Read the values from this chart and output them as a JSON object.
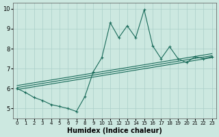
{
  "title": "",
  "xlabel": "Humidex (Indice chaleur)",
  "ylabel": "",
  "xlim": [
    -0.5,
    23.5
  ],
  "ylim": [
    4.5,
    10.3
  ],
  "xticks": [
    0,
    1,
    2,
    3,
    4,
    5,
    6,
    7,
    8,
    9,
    10,
    11,
    12,
    13,
    14,
    15,
    16,
    17,
    18,
    19,
    20,
    21,
    22,
    23
  ],
  "yticks": [
    5,
    6,
    7,
    8,
    9,
    10
  ],
  "bg_color": "#cce8e0",
  "line_color": "#1a6b5a",
  "grid_color": "#aacfc8",
  "spiky_line": {
    "x": [
      0,
      1,
      2,
      3,
      4,
      5,
      6,
      7,
      8,
      9,
      10,
      11,
      12,
      13,
      14,
      15,
      16,
      17,
      18,
      19,
      20,
      21,
      22,
      23
    ],
    "y": [
      6.0,
      5.8,
      5.55,
      5.4,
      5.2,
      5.1,
      5.0,
      4.85,
      5.6,
      6.85,
      7.55,
      9.3,
      8.55,
      9.15,
      8.55,
      9.95,
      8.15,
      7.5,
      8.1,
      7.5,
      7.3,
      7.6,
      7.5,
      7.6
    ]
  },
  "trend_lines": [
    {
      "x": [
        0,
        23
      ],
      "y": [
        5.95,
        7.55
      ]
    },
    {
      "x": [
        0,
        23
      ],
      "y": [
        6.05,
        7.65
      ]
    },
    {
      "x": [
        0,
        23
      ],
      "y": [
        6.15,
        7.75
      ]
    }
  ]
}
